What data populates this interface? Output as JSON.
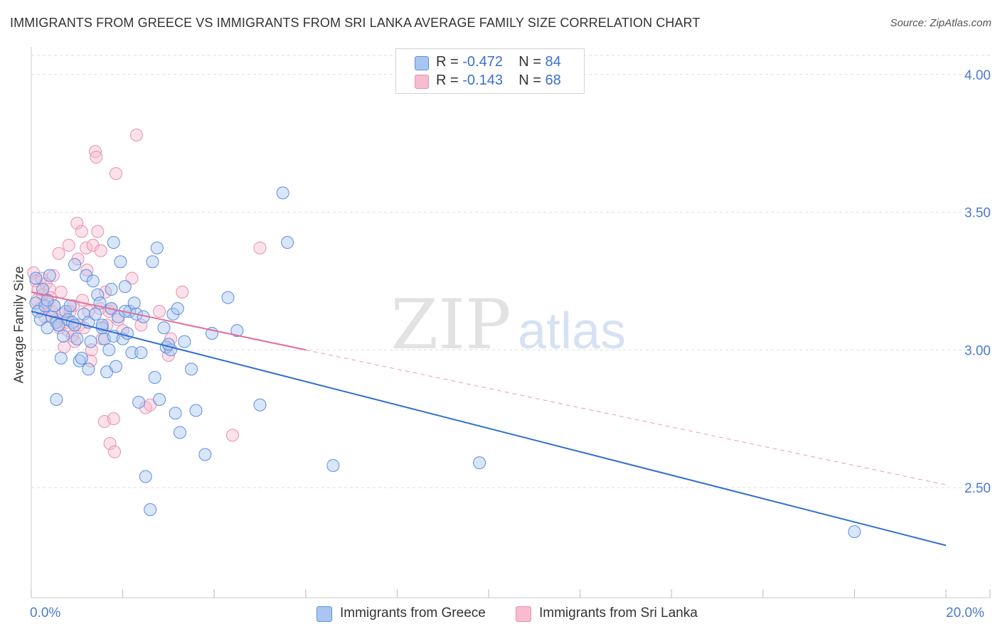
{
  "title": "IMMIGRANTS FROM GREECE VS IMMIGRANTS FROM SRI LANKA AVERAGE FAMILY SIZE CORRELATION CHART",
  "source": "Source: ZipAtlas.com",
  "watermark": {
    "zip": "ZIP",
    "atlas": "atlas"
  },
  "colors": {
    "greece_fill": "#aac6f0",
    "greece_stroke": "#5a8fe0",
    "greece_line": "#2f6fd0",
    "srilanka_fill": "#f7bcd0",
    "srilanka_stroke": "#e890b0",
    "srilanka_line": "#e07098",
    "grid": "#dddddd",
    "tick_text": "#4a7bd0"
  },
  "legend_top": {
    "rows": [
      {
        "r_label": "R =",
        "r_value": "-0.472",
        "n_label": "N =",
        "n_value": "84"
      },
      {
        "r_label": "R =",
        "r_value": "-0.143",
        "n_label": "N =",
        "n_value": "68"
      }
    ]
  },
  "legend_bottom": [
    "Immigrants from Greece",
    "Immigrants from Sri Lanka"
  ],
  "chart_data": {
    "type": "scatter",
    "title": "IMMIGRANTS FROM GREECE VS IMMIGRANTS FROM SRI LANKA AVERAGE FAMILY SIZE CORRELATION CHART",
    "xlabel": "",
    "ylabel": "Average Family Size",
    "xlim": [
      0,
      20
    ],
    "ylim": [
      2.1,
      4.1
    ],
    "x_tick_labels": [
      "0.0%",
      "20.0%"
    ],
    "y_ticks": [
      2.5,
      3.0,
      3.5,
      4.0
    ],
    "y_tick_labels": [
      "2.50",
      "3.00",
      "3.50",
      "4.00"
    ],
    "grid": true,
    "legend": "bottom-center",
    "series": [
      {
        "name": "Immigrants from Greece",
        "r": -0.472,
        "n": 84,
        "trend": {
          "x": [
            0,
            20
          ],
          "y": [
            3.14,
            2.29
          ]
        },
        "points": [
          [
            0.1,
            3.26
          ],
          [
            0.1,
            3.17
          ],
          [
            0.15,
            3.14
          ],
          [
            0.2,
            3.11
          ],
          [
            0.25,
            3.22
          ],
          [
            0.3,
            3.16
          ],
          [
            0.35,
            3.08
          ],
          [
            0.4,
            3.27
          ],
          [
            0.45,
            3.12
          ],
          [
            0.5,
            3.16
          ],
          [
            0.55,
            3.1
          ],
          [
            0.6,
            3.09
          ],
          [
            0.65,
            2.97
          ],
          [
            0.7,
            3.05
          ],
          [
            0.75,
            3.14
          ],
          [
            0.8,
            3.11
          ],
          [
            0.85,
            3.16
          ],
          [
            0.9,
            3.1
          ],
          [
            0.95,
            3.09
          ],
          [
            1.0,
            3.04
          ],
          [
            1.05,
            2.96
          ],
          [
            1.1,
            2.97
          ],
          [
            1.15,
            3.13
          ],
          [
            1.2,
            3.27
          ],
          [
            1.25,
            3.1
          ],
          [
            1.3,
            3.03
          ],
          [
            1.35,
            3.25
          ],
          [
            1.4,
            3.13
          ],
          [
            1.45,
            3.2
          ],
          [
            1.5,
            3.17
          ],
          [
            1.55,
            3.08
          ],
          [
            1.6,
            3.04
          ],
          [
            1.65,
            2.92
          ],
          [
            1.7,
            3.0
          ],
          [
            1.75,
            3.15
          ],
          [
            1.8,
            3.05
          ],
          [
            1.85,
            2.94
          ],
          [
            1.9,
            3.12
          ],
          [
            1.95,
            3.32
          ],
          [
            2.0,
            3.04
          ],
          [
            2.05,
            3.23
          ],
          [
            2.1,
            3.06
          ],
          [
            2.15,
            3.14
          ],
          [
            2.2,
            2.99
          ],
          [
            2.25,
            3.17
          ],
          [
            2.3,
            3.13
          ],
          [
            2.35,
            2.81
          ],
          [
            2.4,
            2.99
          ],
          [
            2.5,
            2.54
          ],
          [
            2.6,
            2.42
          ],
          [
            2.65,
            3.32
          ],
          [
            2.7,
            2.9
          ],
          [
            2.75,
            3.37
          ],
          [
            2.8,
            2.82
          ],
          [
            2.9,
            3.08
          ],
          [
            2.95,
            3.01
          ],
          [
            3.05,
            3.0
          ],
          [
            3.1,
            3.13
          ],
          [
            3.15,
            2.77
          ],
          [
            3.2,
            3.15
          ],
          [
            3.25,
            2.7
          ],
          [
            3.35,
            3.03
          ],
          [
            3.5,
            2.93
          ],
          [
            3.6,
            2.78
          ],
          [
            3.8,
            2.62
          ],
          [
            3.95,
            3.06
          ],
          [
            4.3,
            3.19
          ],
          [
            4.5,
            3.07
          ],
          [
            5.0,
            2.8
          ],
          [
            5.5,
            3.57
          ],
          [
            5.6,
            3.39
          ],
          [
            6.6,
            2.58
          ],
          [
            9.8,
            2.59
          ],
          [
            18.0,
            2.34
          ],
          [
            0.35,
            3.18
          ],
          [
            0.55,
            2.82
          ],
          [
            0.95,
            3.31
          ],
          [
            1.25,
            2.93
          ],
          [
            1.55,
            3.09
          ],
          [
            1.75,
            3.22
          ],
          [
            1.8,
            3.39
          ],
          [
            2.05,
            3.14
          ],
          [
            2.45,
            3.12
          ],
          [
            3.0,
            3.02
          ]
        ]
      },
      {
        "name": "Immigrants from Sri Lanka",
        "r": -0.143,
        "n": 68,
        "trend": {
          "x": [
            0,
            6
          ],
          "y": [
            3.21,
            3.0
          ]
        },
        "trend_ext": {
          "x": [
            6,
            20
          ],
          "y": [
            3.0,
            2.51
          ]
        },
        "points": [
          [
            0.05,
            3.28
          ],
          [
            0.1,
            3.25
          ],
          [
            0.12,
            3.18
          ],
          [
            0.15,
            3.22
          ],
          [
            0.2,
            3.15
          ],
          [
            0.22,
            3.26
          ],
          [
            0.25,
            3.2
          ],
          [
            0.3,
            3.12
          ],
          [
            0.32,
            3.24
          ],
          [
            0.35,
            3.17
          ],
          [
            0.4,
            3.22
          ],
          [
            0.42,
            3.19
          ],
          [
            0.45,
            3.14
          ],
          [
            0.5,
            3.16
          ],
          [
            0.55,
            3.11
          ],
          [
            0.6,
            3.35
          ],
          [
            0.62,
            3.08
          ],
          [
            0.65,
            3.21
          ],
          [
            0.7,
            3.13
          ],
          [
            0.72,
            3.01
          ],
          [
            0.75,
            3.1
          ],
          [
            0.8,
            3.07
          ],
          [
            0.82,
            3.38
          ],
          [
            0.85,
            3.14
          ],
          [
            0.9,
            3.05
          ],
          [
            0.92,
            3.16
          ],
          [
            0.95,
            3.03
          ],
          [
            1.0,
            3.46
          ],
          [
            1.02,
            3.33
          ],
          [
            1.05,
            3.09
          ],
          [
            1.1,
            3.43
          ],
          [
            1.12,
            3.18
          ],
          [
            1.15,
            3.08
          ],
          [
            1.2,
            3.37
          ],
          [
            1.22,
            3.29
          ],
          [
            1.25,
            3.14
          ],
          [
            1.3,
            2.96
          ],
          [
            1.32,
            3.0
          ],
          [
            1.35,
            3.38
          ],
          [
            1.4,
            3.72
          ],
          [
            1.42,
            3.7
          ],
          [
            1.45,
            3.43
          ],
          [
            1.5,
            3.15
          ],
          [
            1.52,
            3.36
          ],
          [
            1.55,
            3.04
          ],
          [
            1.6,
            2.74
          ],
          [
            1.62,
            3.21
          ],
          [
            1.65,
            3.09
          ],
          [
            1.7,
            3.14
          ],
          [
            1.72,
            2.66
          ],
          [
            1.75,
            3.15
          ],
          [
            1.8,
            2.75
          ],
          [
            1.82,
            2.63
          ],
          [
            1.85,
            3.64
          ],
          [
            1.9,
            3.11
          ],
          [
            2.0,
            3.07
          ],
          [
            2.2,
            3.26
          ],
          [
            2.3,
            3.78
          ],
          [
            2.4,
            3.09
          ],
          [
            2.5,
            2.79
          ],
          [
            2.6,
            2.8
          ],
          [
            2.8,
            3.14
          ],
          [
            3.0,
            2.98
          ],
          [
            3.05,
            3.04
          ],
          [
            3.3,
            3.21
          ],
          [
            4.4,
            2.69
          ],
          [
            5.0,
            3.37
          ],
          [
            0.48,
            3.27
          ]
        ]
      }
    ]
  }
}
